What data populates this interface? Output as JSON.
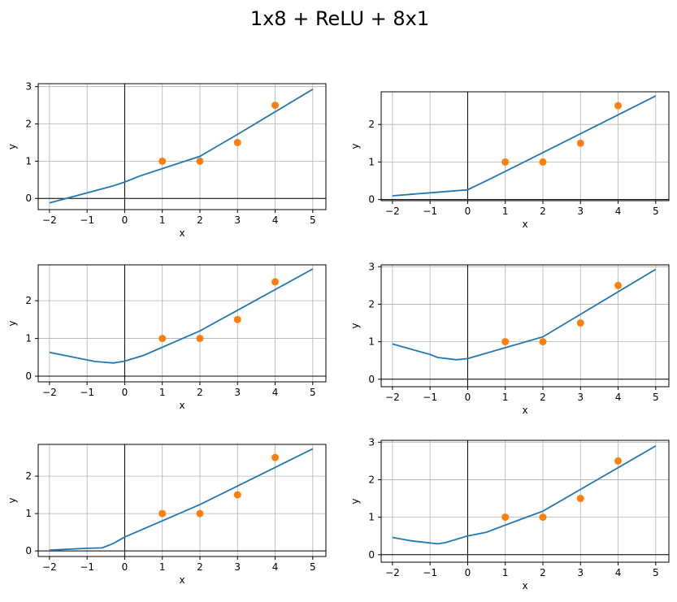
{
  "figure": {
    "title": "1x8 + ReLU + 8x1"
  },
  "colors": {
    "line": "#1f77b4",
    "points": "#ff7f0e",
    "grid": "#b0b0b0",
    "axis": "#000000"
  },
  "chart_data": [
    {
      "type": "line",
      "xlabel": "x",
      "ylabel": "y",
      "xlim": [
        -2.3,
        5.35
      ],
      "ylim": [
        -0.3,
        3.08
      ],
      "xticks": [
        -2,
        -1,
        0,
        1,
        2,
        3,
        4,
        5
      ],
      "yticks": [
        0,
        1,
        2,
        3
      ],
      "grid": true,
      "series": [
        {
          "kind": "line",
          "x": [
            -2,
            -1,
            -0.3,
            0,
            0.4,
            2,
            3,
            5
          ],
          "y": [
            -0.12,
            0.15,
            0.34,
            0.44,
            0.6,
            1.13,
            1.72,
            2.93
          ]
        },
        {
          "kind": "scatter",
          "x": [
            1,
            2,
            3,
            4
          ],
          "y": [
            1,
            1,
            1.5,
            2.5
          ]
        }
      ]
    },
    {
      "type": "line",
      "xlabel": "x",
      "ylabel": "y",
      "xlim": [
        -2.3,
        5.35
      ],
      "ylim": [
        -0.03,
        2.87
      ],
      "xticks": [
        -2,
        -1,
        0,
        1,
        2,
        3,
        4,
        5
      ],
      "yticks": [
        0,
        1,
        2
      ],
      "grid": true,
      "series": [
        {
          "kind": "line",
          "x": [
            -2,
            -1,
            0,
            0.6,
            1,
            5
          ],
          "y": [
            0.1,
            0.18,
            0.26,
            0.55,
            0.75,
            2.76
          ]
        },
        {
          "kind": "scatter",
          "x": [
            1,
            2,
            3,
            4
          ],
          "y": [
            1,
            1,
            1.5,
            2.5
          ]
        }
      ]
    },
    {
      "type": "line",
      "xlabel": "x",
      "ylabel": "y",
      "xlim": [
        -2.3,
        5.35
      ],
      "ylim": [
        -0.15,
        2.95
      ],
      "xticks": [
        -2,
        -1,
        0,
        1,
        2,
        3,
        4,
        5
      ],
      "yticks": [
        0,
        1,
        2
      ],
      "grid": true,
      "series": [
        {
          "kind": "line",
          "x": [
            -2,
            -0.8,
            -0.3,
            0,
            0.5,
            2,
            5
          ],
          "y": [
            0.63,
            0.39,
            0.35,
            0.4,
            0.55,
            1.2,
            2.84
          ]
        },
        {
          "kind": "scatter",
          "x": [
            1,
            2,
            3,
            4
          ],
          "y": [
            1,
            1,
            1.5,
            2.5
          ]
        }
      ]
    },
    {
      "type": "line",
      "xlabel": "x",
      "ylabel": "y",
      "xlim": [
        -2.3,
        5.35
      ],
      "ylim": [
        -0.2,
        3.05
      ],
      "xticks": [
        -2,
        -1,
        0,
        1,
        2,
        3,
        4,
        5
      ],
      "yticks": [
        0,
        1,
        2,
        3
      ],
      "grid": true,
      "series": [
        {
          "kind": "line",
          "x": [
            -2,
            -1,
            -0.8,
            -0.3,
            0,
            2,
            3,
            5
          ],
          "y": [
            0.94,
            0.66,
            0.58,
            0.52,
            0.55,
            1.13,
            1.73,
            2.93
          ]
        },
        {
          "kind": "scatter",
          "x": [
            1,
            2,
            3,
            4
          ],
          "y": [
            1,
            1,
            1.5,
            2.5
          ]
        }
      ]
    },
    {
      "type": "line",
      "xlabel": "x",
      "ylabel": "y",
      "xlim": [
        -2.3,
        5.35
      ],
      "ylim": [
        -0.15,
        2.85
      ],
      "xticks": [
        -2,
        -1,
        0,
        1,
        2,
        3,
        4,
        5
      ],
      "yticks": [
        0,
        1,
        2
      ],
      "grid": true,
      "series": [
        {
          "kind": "line",
          "x": [
            -2,
            -1,
            -0.6,
            -0.3,
            0,
            2,
            5
          ],
          "y": [
            0.02,
            0.07,
            0.08,
            0.2,
            0.37,
            1.24,
            2.73
          ]
        },
        {
          "kind": "scatter",
          "x": [
            1,
            2,
            3,
            4
          ],
          "y": [
            1,
            1,
            1.5,
            2.5
          ]
        }
      ]
    },
    {
      "type": "line",
      "xlabel": "x",
      "ylabel": "y",
      "xlim": [
        -2.3,
        5.35
      ],
      "ylim": [
        -0.2,
        3.05
      ],
      "xticks": [
        -2,
        -1,
        0,
        1,
        2,
        3,
        4,
        5
      ],
      "yticks": [
        0,
        1,
        2,
        3
      ],
      "grid": true,
      "series": [
        {
          "kind": "line",
          "x": [
            -2,
            -1.5,
            -0.8,
            -0.6,
            0,
            0.5,
            1,
            2,
            5
          ],
          "y": [
            0.46,
            0.37,
            0.29,
            0.32,
            0.5,
            0.6,
            0.79,
            1.16,
            2.9
          ]
        },
        {
          "kind": "scatter",
          "x": [
            1,
            2,
            3,
            4
          ],
          "y": [
            1,
            1,
            1.5,
            2.5
          ]
        }
      ]
    }
  ]
}
